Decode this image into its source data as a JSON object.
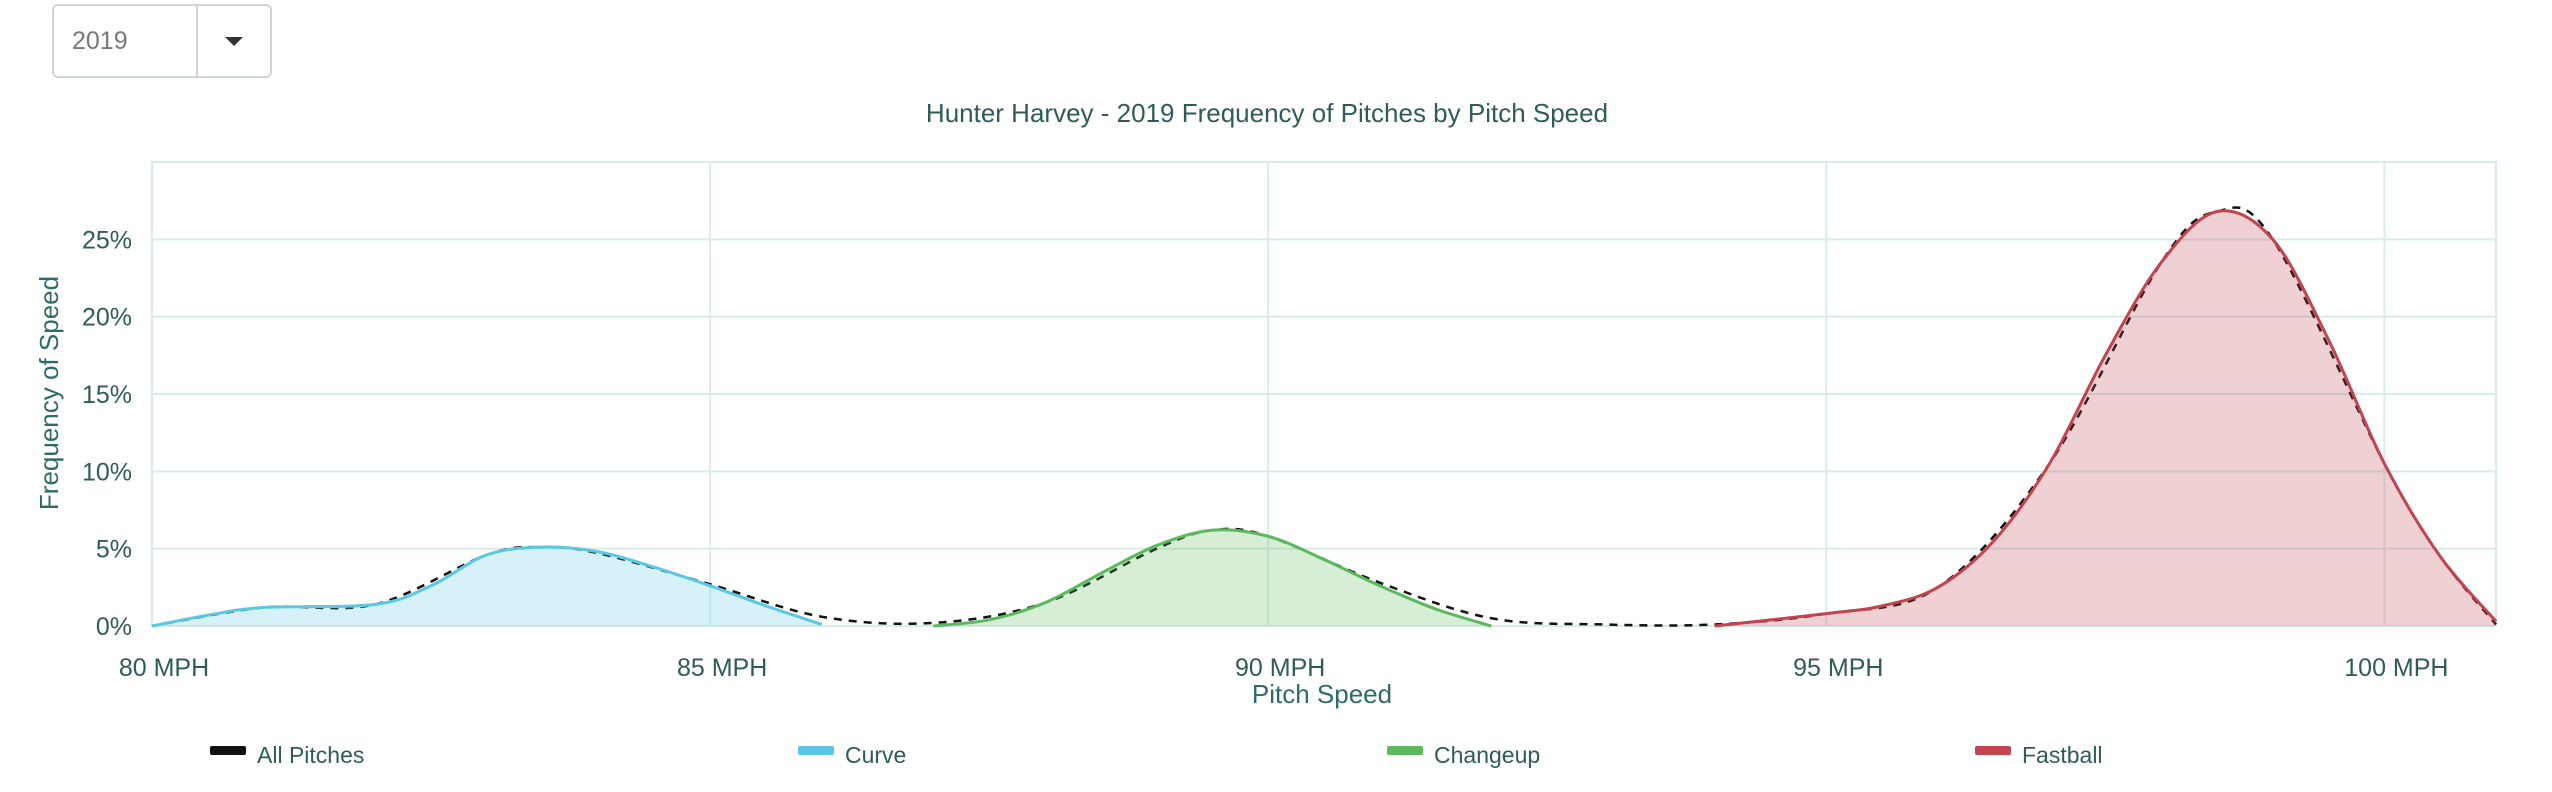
{
  "year_select": {
    "value": "2019",
    "icon": "caret-down-icon"
  },
  "chart_data": {
    "type": "area",
    "title": "Hunter Harvey - 2019 Frequency of Pitches by Pitch Speed",
    "xlabel": "Pitch Speed",
    "ylabel": "Frequency of Speed",
    "xlim": [
      80,
      101
    ],
    "ylim": [
      0,
      30
    ],
    "x_ticks": [
      80,
      85,
      90,
      95,
      100
    ],
    "x_tick_labels": [
      "80 MPH",
      "85 MPH",
      "90 MPH",
      "95 MPH",
      "100 MPH"
    ],
    "y_ticks": [
      0,
      5,
      10,
      15,
      20,
      25
    ],
    "y_tick_labels": [
      "0%",
      "5%",
      "10%",
      "15%",
      "20%",
      "25%"
    ],
    "grid": true,
    "legend": "bottom",
    "series": [
      {
        "name": "All Pitches",
        "color": "#111111",
        "fill": false,
        "dashed": true,
        "x": [
          80,
          81,
          82,
          83,
          83.5,
          84,
          85,
          86,
          87,
          88,
          89,
          89.5,
          90,
          91,
          92,
          93,
          94,
          95,
          96,
          97,
          98,
          98.5,
          99,
          100,
          100.5,
          101
        ],
        "y": [
          0,
          1.2,
          1.4,
          4.6,
          5.1,
          4.7,
          2.7,
          0.6,
          0.2,
          1.5,
          5.0,
          6.2,
          5.8,
          2.8,
          0.5,
          0.1,
          0.1,
          0.8,
          2.5,
          10.5,
          23.5,
          26.8,
          25.0,
          10.5,
          4.5,
          0.1
        ]
      },
      {
        "name": "Curve",
        "color": "#5bc8e3",
        "x": [
          80,
          80.5,
          81,
          82,
          82.5,
          83,
          83.5,
          84,
          84.5,
          85,
          85.5,
          86
        ],
        "y": [
          0,
          0.7,
          1.2,
          1.4,
          2.6,
          4.6,
          5.1,
          4.8,
          3.8,
          2.6,
          1.3,
          0.1
        ]
      },
      {
        "name": "Changeup",
        "color": "#5cb85c",
        "x": [
          87,
          87.5,
          88,
          88.5,
          89,
          89.5,
          90,
          90.5,
          91,
          91.5,
          92
        ],
        "y": [
          0,
          0.4,
          1.5,
          3.4,
          5.2,
          6.2,
          5.8,
          4.3,
          2.6,
          1.1,
          0
        ]
      },
      {
        "name": "Fastball",
        "color": "#c1444f",
        "x": [
          94,
          95,
          95.5,
          96,
          96.5,
          97,
          97.5,
          98,
          98.5,
          99,
          99.5,
          100,
          100.5,
          101
        ],
        "y": [
          0,
          0.8,
          1.3,
          2.5,
          5.5,
          10.5,
          17.5,
          23.5,
          26.8,
          25.0,
          18.5,
          10.5,
          4.5,
          0.3
        ]
      }
    ]
  }
}
